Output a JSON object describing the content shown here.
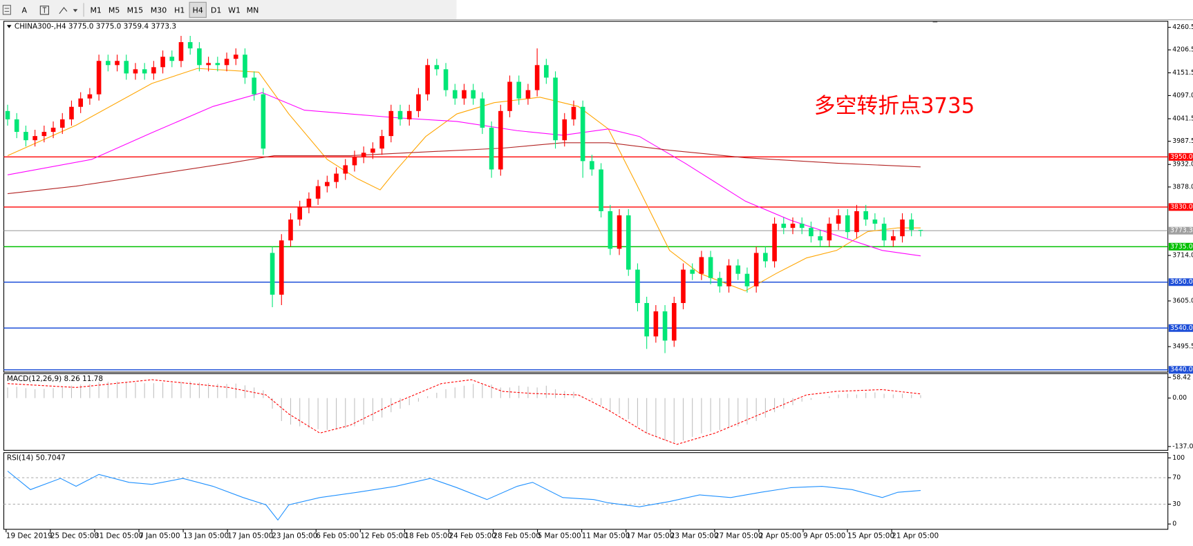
{
  "toolbar": {
    "buttons": [
      "M1",
      "M5",
      "M15",
      "M30",
      "H1",
      "H4",
      "D1",
      "W1",
      "MN"
    ],
    "active": "H4",
    "icon_text": "A"
  },
  "chart_data": [
    {
      "type": "candlestick",
      "title": "CHINA300-,H4  3775.0 3775.0 3759.4 3773.3",
      "annotation": "多空转折点3735",
      "annotation_color": "#ff0000",
      "up_color": "#ff0000",
      "down_color": "#00e676",
      "open": [
        4060,
        4040,
        4010,
        3990,
        4000,
        4010,
        4020,
        4040,
        4070,
        4090,
        4100,
        4180,
        4170,
        4180,
        4150,
        4160,
        4150,
        4165,
        4190,
        4180,
        4225,
        4210,
        4170,
        4175,
        4170,
        4185,
        4195,
        4140,
        4100,
        3720,
        3620,
        3750,
        3800,
        3830,
        3850,
        3880,
        3890,
        3910,
        3930,
        3950,
        3960,
        3970,
        4000,
        4060,
        4040,
        4060,
        4100,
        4170,
        4160,
        4110,
        4090,
        4110,
        4090,
        4020,
        3920,
        4060,
        4130,
        4090,
        4110,
        4170,
        4140,
        3990,
        4040,
        4070,
        3940,
        3920,
        3820,
        3730,
        3810,
        3680,
        3600,
        3520,
        3580,
        3510,
        3600,
        3680,
        3670,
        3710,
        3660,
        3640,
        3690,
        3670,
        3640,
        3720,
        3700,
        3790,
        3780,
        3790,
        3780,
        3760,
        3750,
        3790,
        3810,
        3770,
        3820,
        3800,
        3790,
        3750,
        3760,
        3800,
        3775
      ],
      "high": [
        4075,
        4055,
        4025,
        4015,
        4025,
        4035,
        4055,
        4085,
        4105,
        4115,
        4195,
        4195,
        4195,
        4195,
        4175,
        4175,
        4180,
        4205,
        4205,
        4240,
        4240,
        4225,
        4190,
        4190,
        4200,
        4210,
        4210,
        4155,
        4115,
        3735,
        3765,
        3815,
        3845,
        3865,
        3895,
        3905,
        3925,
        3945,
        3965,
        3975,
        3985,
        4015,
        4075,
        4075,
        4075,
        4115,
        4185,
        4185,
        4175,
        4125,
        4125,
        4125,
        4105,
        4035,
        4075,
        4145,
        4145,
        4125,
        4210,
        4185,
        4155,
        4055,
        4085,
        4085,
        3955,
        3935,
        3835,
        3825,
        3825,
        3695,
        3615,
        3595,
        3595,
        3615,
        3695,
        3695,
        3725,
        3725,
        3675,
        3705,
        3705,
        3685,
        3735,
        3735,
        3805,
        3805,
        3805,
        3805,
        3795,
        3775,
        3805,
        3825,
        3825,
        3835,
        3835,
        3815,
        3805,
        3775,
        3815,
        3815,
        3775
      ],
      "low": [
        4025,
        3995,
        3975,
        3975,
        3985,
        3995,
        4005,
        4025,
        4055,
        4075,
        4085,
        4155,
        4155,
        4135,
        4135,
        4135,
        4135,
        4150,
        4165,
        4165,
        4195,
        4155,
        4155,
        4155,
        4155,
        4170,
        4125,
        4085,
        3955,
        3590,
        3595,
        3735,
        3785,
        3815,
        3835,
        3865,
        3875,
        3895,
        3915,
        3935,
        3945,
        3955,
        3985,
        4025,
        4025,
        4045,
        4085,
        4145,
        4095,
        4075,
        4075,
        4075,
        4005,
        3900,
        3905,
        4045,
        4075,
        4075,
        4095,
        4125,
        3970,
        3975,
        4025,
        3900,
        3905,
        3805,
        3715,
        3715,
        3665,
        3580,
        3490,
        3505,
        3480,
        3495,
        3585,
        3655,
        3655,
        3645,
        3625,
        3625,
        3655,
        3625,
        3625,
        3685,
        3685,
        3765,
        3765,
        3765,
        3745,
        3735,
        3735,
        3775,
        3755,
        3755,
        3785,
        3775,
        3735,
        3735,
        3745,
        3760,
        3759.4
      ],
      "close": [
        4040,
        4010,
        3990,
        4000,
        4010,
        4020,
        4040,
        4070,
        4090,
        4100,
        4180,
        4170,
        4180,
        4150,
        4160,
        4150,
        4165,
        4190,
        4180,
        4225,
        4210,
        4170,
        4175,
        4170,
        4185,
        4195,
        4140,
        4100,
        3970,
        3620,
        3750,
        3800,
        3830,
        3850,
        3880,
        3890,
        3910,
        3930,
        3950,
        3960,
        3970,
        4000,
        4060,
        4040,
        4060,
        4100,
        4170,
        4160,
        4110,
        4090,
        4110,
        4090,
        4020,
        3920,
        4060,
        4130,
        4090,
        4110,
        4170,
        4140,
        3990,
        4040,
        4070,
        3940,
        3920,
        3820,
        3730,
        3810,
        3680,
        3600,
        3520,
        3580,
        3510,
        3600,
        3680,
        3670,
        3710,
        3660,
        3640,
        3690,
        3670,
        3640,
        3720,
        3700,
        3790,
        3780,
        3790,
        3780,
        3760,
        3750,
        3790,
        3810,
        3770,
        3820,
        3800,
        3790,
        3750,
        3760,
        3800,
        3775,
        3773.3
      ],
      "lines": [
        {
          "color": "#ffa500",
          "x": [
            0,
            7.5,
            15.8,
            20.8,
            27.5,
            30.8,
            35,
            38.3,
            40.8,
            42.5,
            45.8,
            49.2,
            53.3,
            58.3,
            62.5,
            65.8,
            69.2,
            72.5,
            75.8,
            80.8,
            84.2,
            87.5,
            90.8,
            94.2,
            97.5,
            100
          ],
          "values": [
            3953,
            4026,
            4126,
            4162,
            4153,
            4053,
            3944,
            3898,
            3871,
            3917,
            3999,
            4053,
            4080,
            4093,
            4071,
            4017,
            3871,
            3726,
            3671,
            3629,
            3671,
            3708,
            3726,
            3771,
            3780,
            3780
          ]
        },
        {
          "color": "#ff00ff",
          "x": [
            0,
            9.2,
            15.8,
            22.5,
            27.9,
            32.5,
            37.5,
            42.5,
            49.2,
            55.8,
            60.8,
            65.8,
            69.2,
            74.2,
            80.8,
            85.8,
            90.8,
            95.8,
            100
          ],
          "values": [
            3907,
            3944,
            4008,
            4071,
            4104,
            4062,
            4053,
            4044,
            4035,
            4013,
            4002,
            4017,
            3999,
            3935,
            3844,
            3798,
            3762,
            3726,
            3713
          ]
        },
        {
          "color": "#b22222",
          "x": [
            0,
            7.5,
            15.8,
            24.2,
            29.2,
            37.5,
            45.8,
            54.2,
            60.8,
            65.8,
            72.5,
            80.8,
            90.8,
            100
          ],
          "values": [
            3862,
            3880,
            3907,
            3935,
            3953,
            3953,
            3962,
            3971,
            3984,
            3984,
            3966,
            3948,
            3935,
            3926
          ]
        }
      ],
      "levels": [
        {
          "value": 3950,
          "label": "3950.0",
          "color": "#ff0000"
        },
        {
          "value": 3830,
          "label": "3830.0",
          "color": "#ff0000"
        },
        {
          "value": 3773.3,
          "color": "#a0a0a0"
        },
        {
          "value": 3735,
          "label": "3735.0",
          "color": "#00c000"
        },
        {
          "value": 3650,
          "label": "3650.0",
          "color": "#1e4fd8"
        },
        {
          "value": 3540,
          "label": "3540.0",
          "color": "#1e4fd8"
        },
        {
          "value": 3440,
          "label": "3440.0",
          "color": "#1e4fd8"
        }
      ],
      "ylim": [
        3434.5,
        4275
      ],
      "yticks": [
        4260.5,
        4206.5,
        4151.5,
        {
          "value": 4097,
          "label": "4097.0"
        },
        4041.5,
        3987.5,
        {
          "value": 3932,
          "label": "3932.0"
        },
        {
          "value": 3878,
          "label": "3878.0"
        },
        {
          "value": 3714,
          "label": "3714.0"
        },
        {
          "value": 3605,
          "label": "3605.0"
        },
        3495.5
      ],
      "time_labels": [
        "19 Dec 2019",
        "25 Dec 05:00",
        "31 Dec 05:00",
        "7 Jan 05:00",
        "13 Jan 05:00",
        "17 Jan 05:00",
        "23 Jan 05:00",
        "6 Feb 05:00",
        "12 Feb 05:00",
        "18 Feb 05:00",
        "24 Feb 05:00",
        "28 Feb 05:00",
        "5 Mar 05:00",
        "11 Mar 05:00",
        "17 Mar 05:00",
        "23 Mar 05:00",
        "27 Mar 05:00",
        "2 Apr 05:00",
        "9 Apr 05:00",
        "15 Apr 05:00",
        "21 Apr 05:00"
      ]
    },
    {
      "type": "macd",
      "title": "MACD(12,26,9) 8.26 11.78",
      "color": "#c0c0c0",
      "values": [
        30,
        32,
        28,
        25,
        26,
        28,
        30,
        35,
        38,
        40,
        45,
        46,
        47,
        45,
        44,
        42,
        42,
        44,
        43,
        46,
        47,
        44,
        42,
        40,
        40,
        41,
        36,
        30,
        22,
        -30,
        -65,
        -75,
        -80,
        -85,
        -88,
        -90,
        -88,
        -85,
        -80,
        -75,
        -65,
        -55,
        -40,
        -30,
        -20,
        -10,
        5,
        15,
        25,
        30,
        35,
        40,
        40,
        38,
        30,
        30,
        35,
        32,
        30,
        35,
        25,
        20,
        18,
        5,
        -5,
        -20,
        -40,
        -45,
        -60,
        -80,
        -100,
        -110,
        -120,
        -125,
        -120,
        -110,
        -100,
        -95,
        -90,
        -85,
        -80,
        -75,
        -65,
        -55,
        -40,
        -30,
        -20,
        -10,
        -5,
        0,
        5,
        10,
        12,
        10,
        15,
        16,
        12,
        10,
        12,
        10,
        8.26
      ],
      "signal": {
        "color": "#ff0000",
        "x": [
          0,
          7.5,
          15.8,
          24.2,
          28.3,
          30.8,
          34.2,
          37.5,
          42.5,
          47.5,
          50.8,
          54.2,
          57.5,
          62.5,
          65.8,
          70,
          73.3,
          77.5,
          82.5,
          87.5,
          90.8,
          95.8,
          100
        ],
        "values": [
          41,
          30,
          52,
          30,
          9,
          -45,
          -99,
          -77,
          -13,
          41,
          52,
          19,
          13,
          9,
          -34,
          -99,
          -131,
          -99,
          -45,
          9,
          19,
          24,
          11.78
        ]
      },
      "ylim": [
        -147.8,
        69.2
      ],
      "yticks": [
        58.42,
        {
          "value": 0,
          "label": "0.00"
        },
        -137.09
      ]
    },
    {
      "type": "rsi",
      "title": "RSI(14) 50.7047",
      "color": "#1e90ff",
      "x": [
        0,
        2.5,
        5.8,
        7.5,
        10,
        13.3,
        15.8,
        19.2,
        22.5,
        25.8,
        28.3,
        29.6,
        30.8,
        34.2,
        38.3,
        42.5,
        46.3,
        49.2,
        52.5,
        55.8,
        57.5,
        60.8,
        64.2,
        65.8,
        69.2,
        72.5,
        75.8,
        79.2,
        82.5,
        85.8,
        89.2,
        92.5,
        95.8,
        97.5,
        100
      ],
      "values": [
        80,
        52,
        69,
        57,
        75,
        63,
        60,
        69,
        57,
        40,
        29,
        6,
        29,
        40,
        48,
        57,
        69,
        55,
        37,
        57,
        63,
        40,
        37,
        32,
        26,
        34,
        44,
        40,
        48,
        55,
        57,
        52,
        40,
        48,
        50.7047
      ],
      "levels": [
        70,
        30
      ],
      "ylim": [
        -8,
        108
      ],
      "yticks": [
        100,
        70,
        30,
        0
      ]
    }
  ]
}
